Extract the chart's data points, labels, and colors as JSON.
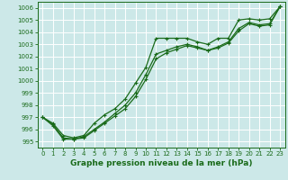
{
  "background_color": "#cce8e8",
  "grid_color": "#ffffff",
  "line_color": "#1a6b1a",
  "xlabel": "Graphe pression niveau de la mer (hPa)",
  "ylim": [
    994.5,
    1006.5
  ],
  "xlim": [
    -0.5,
    23.5
  ],
  "yticks": [
    995,
    996,
    997,
    998,
    999,
    1000,
    1001,
    1002,
    1003,
    1004,
    1005,
    1006
  ],
  "xticks": [
    0,
    1,
    2,
    3,
    4,
    5,
    6,
    7,
    8,
    9,
    10,
    11,
    12,
    13,
    14,
    15,
    16,
    17,
    18,
    19,
    20,
    21,
    22,
    23
  ],
  "series1": [
    997.0,
    996.5,
    995.5,
    995.3,
    995.5,
    996.5,
    997.2,
    997.7,
    998.5,
    999.8,
    1001.1,
    1003.5,
    1003.5,
    1003.5,
    1003.5,
    1003.2,
    1003.0,
    1003.5,
    1003.5,
    1005.0,
    1005.1,
    1005.0,
    1005.1,
    1006.1
  ],
  "series2": [
    997.0,
    996.4,
    995.3,
    995.2,
    995.4,
    996.0,
    996.6,
    997.3,
    998.0,
    999.0,
    1000.5,
    1002.2,
    1002.5,
    1002.8,
    1003.0,
    1002.8,
    1002.5,
    1002.8,
    1003.2,
    1004.3,
    1004.8,
    1004.6,
    1004.7,
    1006.1
  ],
  "series3": [
    997.0,
    996.3,
    995.2,
    995.2,
    995.3,
    995.9,
    996.5,
    997.1,
    997.7,
    998.7,
    1000.1,
    1001.8,
    1002.3,
    1002.6,
    1002.9,
    1002.7,
    1002.5,
    1002.7,
    1003.1,
    1004.1,
    1004.7,
    1004.5,
    1004.6,
    1006.1
  ]
}
